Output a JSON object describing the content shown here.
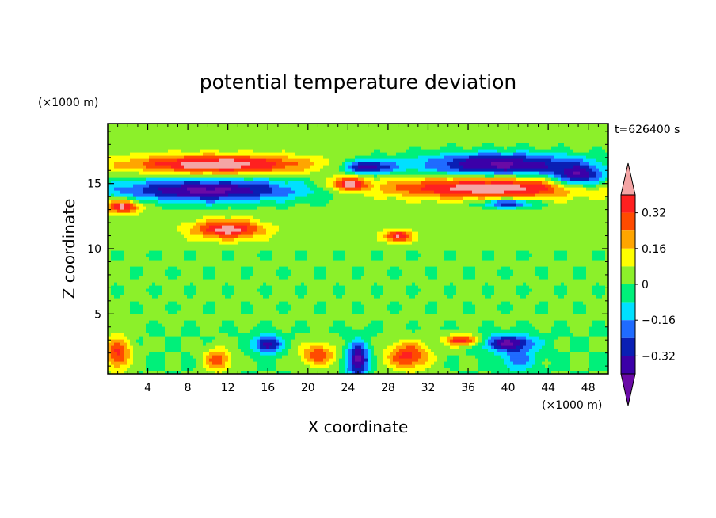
{
  "chart_data": {
    "type": "heatmap",
    "title": "potential temperature deviation",
    "xlabel": "X coordinate",
    "ylabel": "Z coordinate",
    "x_unit": "(×1000 m)",
    "y_unit": "(×1000 m)",
    "time_label": "t=626400 s",
    "xlim": [
      0,
      50
    ],
    "ylim": [
      0.4,
      19.6
    ],
    "x_ticks": [
      4,
      8,
      12,
      16,
      20,
      24,
      28,
      32,
      36,
      40,
      44,
      48
    ],
    "y_ticks": [
      5,
      10,
      15
    ],
    "colorbar": {
      "levels": [
        -0.4,
        -0.32,
        -0.24,
        -0.16,
        -0.08,
        0,
        0.08,
        0.16,
        0.24,
        0.32,
        0.4
      ],
      "colors": [
        "#6a0aa6",
        "#3b00a8",
        "#0a1fb4",
        "#1f6bff",
        "#00e0ff",
        "#00f07a",
        "#8cf02a",
        "#ffff00",
        "#ffa500",
        "#ff4b00",
        "#ff2020",
        "#f4a5a5"
      ],
      "tick_labels": [
        "0.32",
        "0.16",
        "0",
        "−0.16",
        "−0.32"
      ],
      "tick_values": [
        0.32,
        0.16,
        0,
        -0.16,
        -0.32
      ]
    },
    "features": [
      {
        "x": 11,
        "z": 16.5,
        "rx": 10,
        "rz": 0.8,
        "value": 0.45
      },
      {
        "x": 38,
        "z": 14.7,
        "rx": 12,
        "rz": 0.9,
        "value": 0.45
      },
      {
        "x": 1.5,
        "z": 13.3,
        "rx": 2,
        "rz": 0.6,
        "value": 0.42
      },
      {
        "x": 12,
        "z": 11.5,
        "rx": 4,
        "rz": 0.8,
        "value": 0.42
      },
      {
        "x": 29,
        "z": 11.0,
        "rx": 1.5,
        "rz": 0.5,
        "value": 0.4
      },
      {
        "x": 24,
        "z": 15.0,
        "rx": 2,
        "rz": 0.6,
        "value": 0.38
      },
      {
        "x": 10,
        "z": 14.5,
        "rx": 11,
        "rz": 1.0,
        "value": -0.45
      },
      {
        "x": 39,
        "z": 16.5,
        "rx": 9,
        "rz": 1.0,
        "value": -0.45
      },
      {
        "x": 26,
        "z": 16.3,
        "rx": 3,
        "rz": 0.6,
        "value": -0.4
      },
      {
        "x": 47,
        "z": 15.5,
        "rx": 3,
        "rz": 1.0,
        "value": -0.42
      },
      {
        "x": 40,
        "z": 13.5,
        "rx": 3,
        "rz": 0.4,
        "value": -0.35
      },
      {
        "x": 25,
        "z": 1.5,
        "rx": 1.2,
        "rz": 1.5,
        "value": -0.45
      },
      {
        "x": 40,
        "z": 2.8,
        "rx": 3,
        "rz": 0.7,
        "value": -0.4
      },
      {
        "x": 16,
        "z": 2.7,
        "rx": 1.5,
        "rz": 0.8,
        "value": -0.38
      },
      {
        "x": 30,
        "z": 1.8,
        "rx": 2.5,
        "rz": 1.2,
        "value": 0.35
      },
      {
        "x": 21,
        "z": 1.9,
        "rx": 2,
        "rz": 1.0,
        "value": 0.3
      },
      {
        "x": 11,
        "z": 1.5,
        "rx": 1.5,
        "rz": 1.0,
        "value": 0.3
      },
      {
        "x": 1,
        "z": 2.0,
        "rx": 1.5,
        "rz": 1.5,
        "value": 0.33
      },
      {
        "x": 35.5,
        "z": 3.0,
        "rx": 2,
        "rz": 0.5,
        "value": 0.4
      },
      {
        "x": 41,
        "z": 1.5,
        "rx": 2,
        "rz": 1.0,
        "value": -0.2
      }
    ]
  }
}
